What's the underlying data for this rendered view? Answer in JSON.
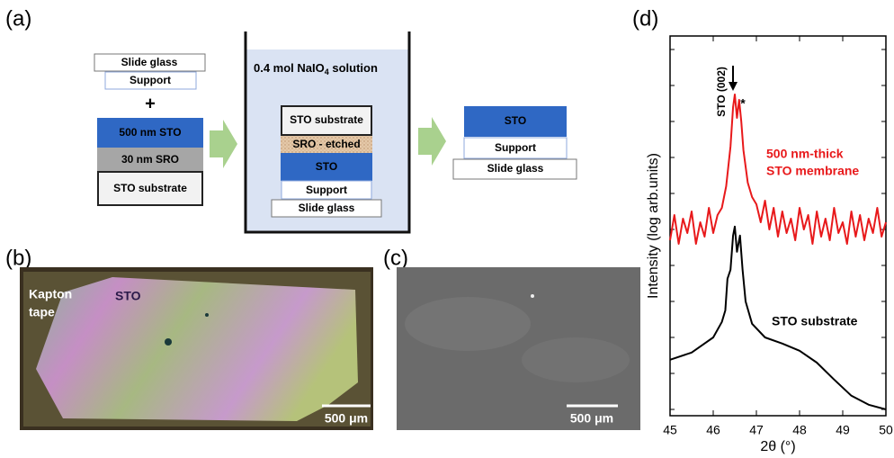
{
  "panel_labels": [
    "(a)",
    "(b)",
    "(c)",
    "(d)"
  ],
  "diagram": {
    "left_stack": {
      "top": [
        "Slide glass",
        "Support"
      ],
      "plus": "+",
      "bottom": [
        "500 nm STO",
        "30 nm SRO",
        "STO substrate"
      ]
    },
    "beaker": {
      "solution": {
        "prefix": "0.4 mol NaIO",
        "subscript": "4",
        "suffix": " solution"
      },
      "stack": [
        "STO substrate",
        "SRO - etched",
        "STO",
        "Support",
        "Slide glass"
      ]
    },
    "right_stack": [
      "STO",
      "Support",
      "Slide glass"
    ]
  },
  "photo_b": {
    "labels": [
      "Kapton",
      "tape",
      "STO"
    ],
    "scale_bar": "500 μm"
  },
  "photo_c": {
    "scale_bar": "500 μm"
  },
  "chart_data": {
    "type": "line",
    "xlabel": "2θ (°)",
    "ylabel": "Intensity (log arb.units)",
    "xlim": [
      45,
      50
    ],
    "xticks": [
      45,
      46,
      47,
      48,
      49,
      50
    ],
    "ylim": [
      -0.175,
      10.375
    ],
    "yticks": [
      0,
      1,
      2,
      3,
      4,
      5,
      6,
      7,
      8,
      9,
      10
    ],
    "annotations": [
      "STO (002)",
      "*",
      "500 nm-thick",
      "STO membrane",
      "STO substrate"
    ],
    "series": [
      {
        "color": "#e8191b",
        "x": [
          45,
          45.1,
          45.2,
          45.3,
          45.4,
          45.5,
          45.6,
          45.7,
          45.8,
          45.9,
          46.0,
          46.1,
          46.2,
          46.3,
          46.4,
          46.46,
          46.5,
          46.55,
          46.6,
          46.65,
          46.7,
          46.8,
          46.9,
          47.0,
          47.1,
          47.2,
          47.3,
          47.4,
          47.5,
          47.6,
          47.7,
          47.8,
          47.9,
          48.0,
          48.1,
          48.2,
          48.3,
          48.4,
          48.5,
          48.6,
          48.7,
          48.8,
          48.9,
          49.0,
          49.1,
          49.2,
          49.3,
          49.4,
          49.5,
          49.6,
          49.7,
          49.8,
          49.9,
          50.0
        ],
        "values": [
          4.7,
          5.4,
          4.6,
          5.3,
          4.9,
          5.5,
          4.6,
          5.2,
          4.8,
          5.6,
          4.9,
          5.4,
          5.6,
          6.2,
          7.3,
          8.4,
          8.75,
          8.1,
          8.6,
          8.0,
          7.2,
          6.3,
          5.9,
          5.7,
          5.2,
          5.8,
          5.0,
          5.6,
          4.8,
          5.5,
          4.9,
          5.3,
          4.7,
          5.6,
          5.0,
          5.4,
          4.6,
          5.5,
          4.8,
          5.3,
          4.7,
          5.6,
          4.9,
          5.2,
          4.6,
          5.5,
          4.8,
          5.4,
          4.7,
          5.3,
          4.9,
          5.6,
          4.8,
          5.2
        ]
      },
      {
        "color": "#000000",
        "x": [
          45,
          45.5,
          46,
          46.2,
          46.28,
          46.33,
          46.4,
          46.46,
          46.5,
          46.55,
          46.62,
          46.68,
          46.75,
          46.9,
          47.2,
          47.6,
          48,
          48.4,
          48.8,
          49.2,
          49.6,
          50
        ],
        "values": [
          1.38,
          1.58,
          2.0,
          2.43,
          2.75,
          3.63,
          3.88,
          4.83,
          5.08,
          4.38,
          4.83,
          3.88,
          3.0,
          2.38,
          2.0,
          1.83,
          1.63,
          1.3,
          0.83,
          0.38,
          0.13,
          0.0
        ]
      }
    ]
  }
}
